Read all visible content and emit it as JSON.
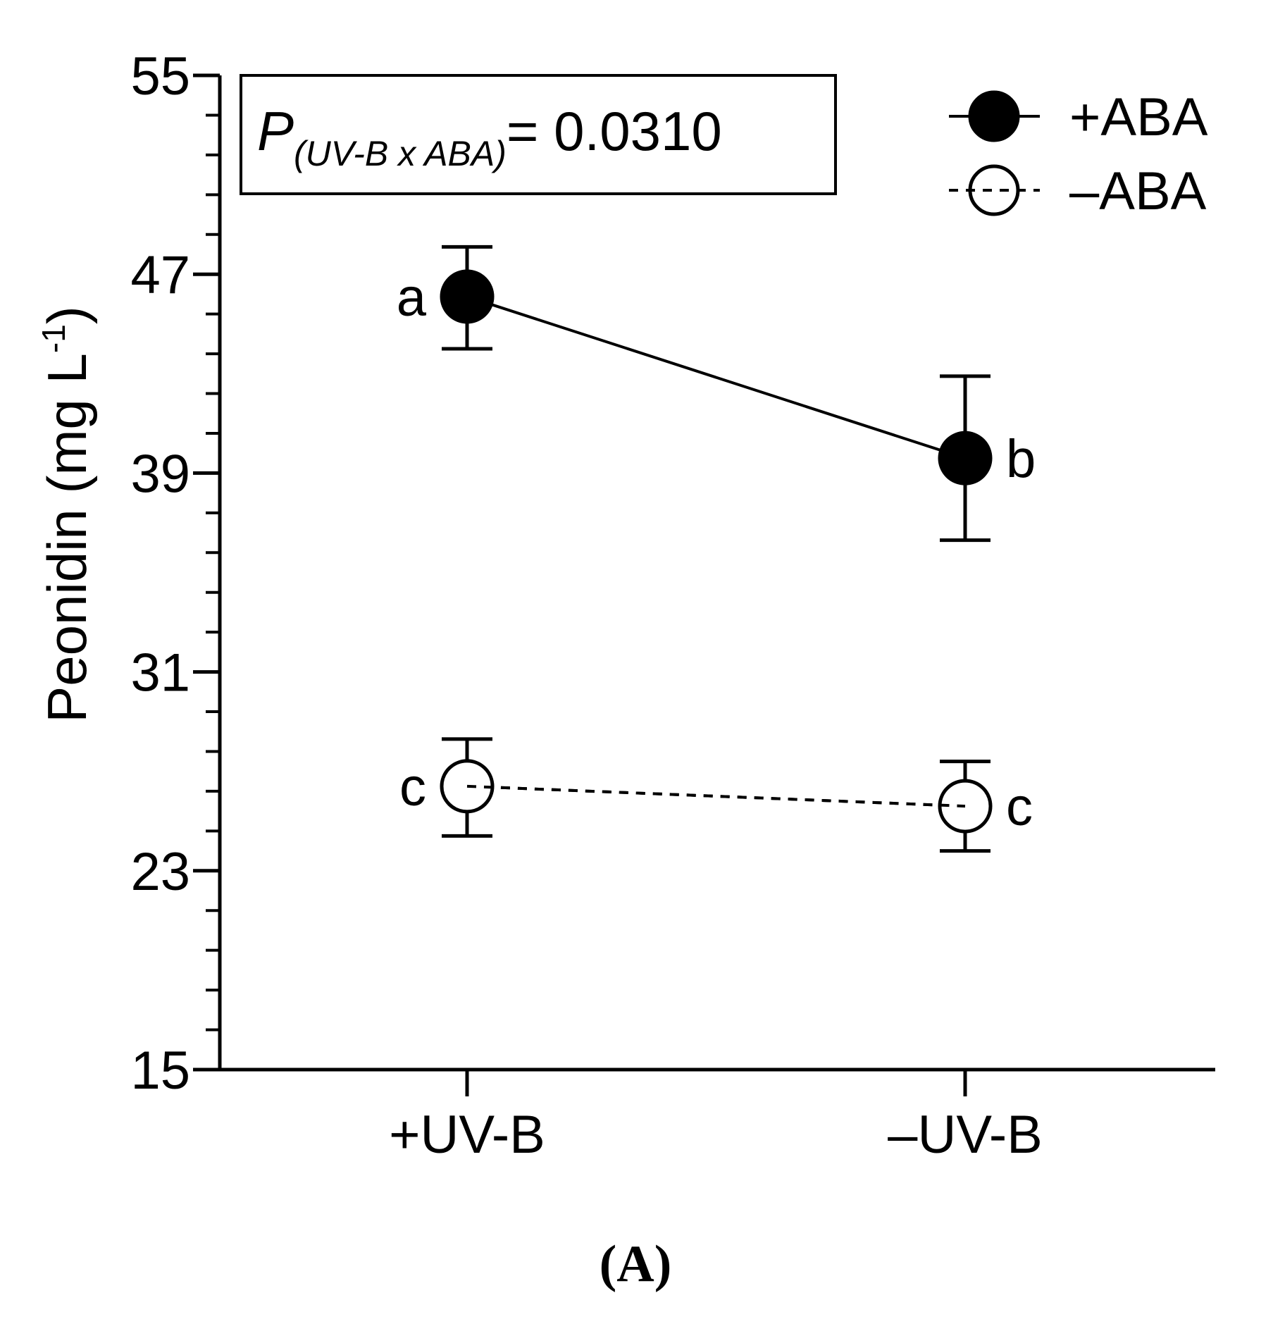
{
  "chart_data": {
    "type": "line",
    "title": "",
    "panel_label": "(A)",
    "ylabel_main": "Peonidin (mg L",
    "ylabel_sup": "-1",
    "ylabel_close": ")",
    "xlabel": "",
    "ylim": [
      15,
      55
    ],
    "yticks": [
      15,
      23,
      31,
      39,
      47,
      55
    ],
    "ytick_labels": [
      "15",
      "23",
      "31",
      "39",
      "47",
      "55"
    ],
    "yminor_step": 1.6,
    "categories": [
      "+UV-B",
      "–UV-B"
    ],
    "annotation": {
      "p_symbol": "P",
      "p_subscript": "(UV-B x ABA)",
      "p_value": "= 0.0310"
    },
    "legend_position": "top-right",
    "series": [
      {
        "name": "+ABA",
        "legend_label": "+ABA",
        "marker": "filled-circle",
        "line": "solid",
        "values": [
          46.1,
          39.6
        ],
        "err_low": [
          44.0,
          36.3
        ],
        "err_high": [
          48.1,
          42.9
        ],
        "letters": [
          "a",
          "b"
        ]
      },
      {
        "name": "-ABA",
        "legend_label": "–ABA",
        "marker": "open-circle",
        "line": "dashed",
        "values": [
          26.4,
          25.6
        ],
        "err_low": [
          24.4,
          23.8
        ],
        "err_high": [
          28.3,
          27.4
        ],
        "letters": [
          "c",
          "c"
        ]
      }
    ],
    "colors": {
      "ink": "#000000",
      "background": "#ffffff"
    }
  }
}
